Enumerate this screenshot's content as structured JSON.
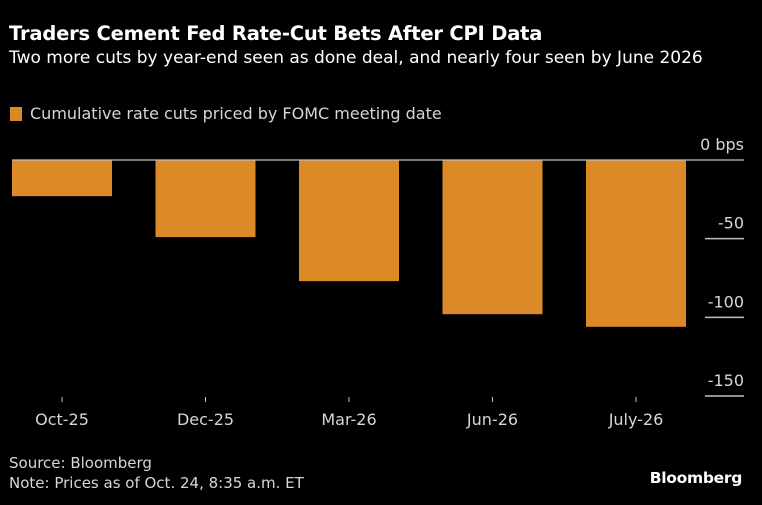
{
  "header": {
    "title": "Traders Cement Fed Rate-Cut Bets After CPI Data",
    "subtitle": "Two more cuts by year-end seen as done deal, and nearly four seen by June 2026"
  },
  "footer": {
    "source": "Source: Bloomberg",
    "note": "Note: Prices as of Oct. 24, 8:35 a.m. ET",
    "brand": "Bloomberg"
  },
  "colors": {
    "bar": "#dc8a27",
    "background": "#000000",
    "axis": "#bfbfbf"
  },
  "chart_data": {
    "type": "bar",
    "title": "Traders Cement Fed Rate-Cut Bets After CPI Data",
    "subtitle": "Two more cuts by year-end seen as done deal, and nearly four seen by June 2026",
    "categories": [
      "Oct-25",
      "Dec-25",
      "Mar-26",
      "Jun-26",
      "July-26"
    ],
    "series": [
      {
        "name": "Cumulative rate cuts priced by FOMC meeting date",
        "values": [
          -23,
          -49,
          -77,
          -98,
          -106
        ]
      }
    ],
    "xlabel": "",
    "ylabel": "",
    "ylim": [
      -150,
      0
    ],
    "yticks": [
      0,
      -50,
      -100,
      -150
    ],
    "ytick_labels": [
      "0 bps",
      "-50",
      "-100",
      "-150"
    ],
    "legend": "top-left",
    "grid": false,
    "y_axis_side": "right"
  }
}
